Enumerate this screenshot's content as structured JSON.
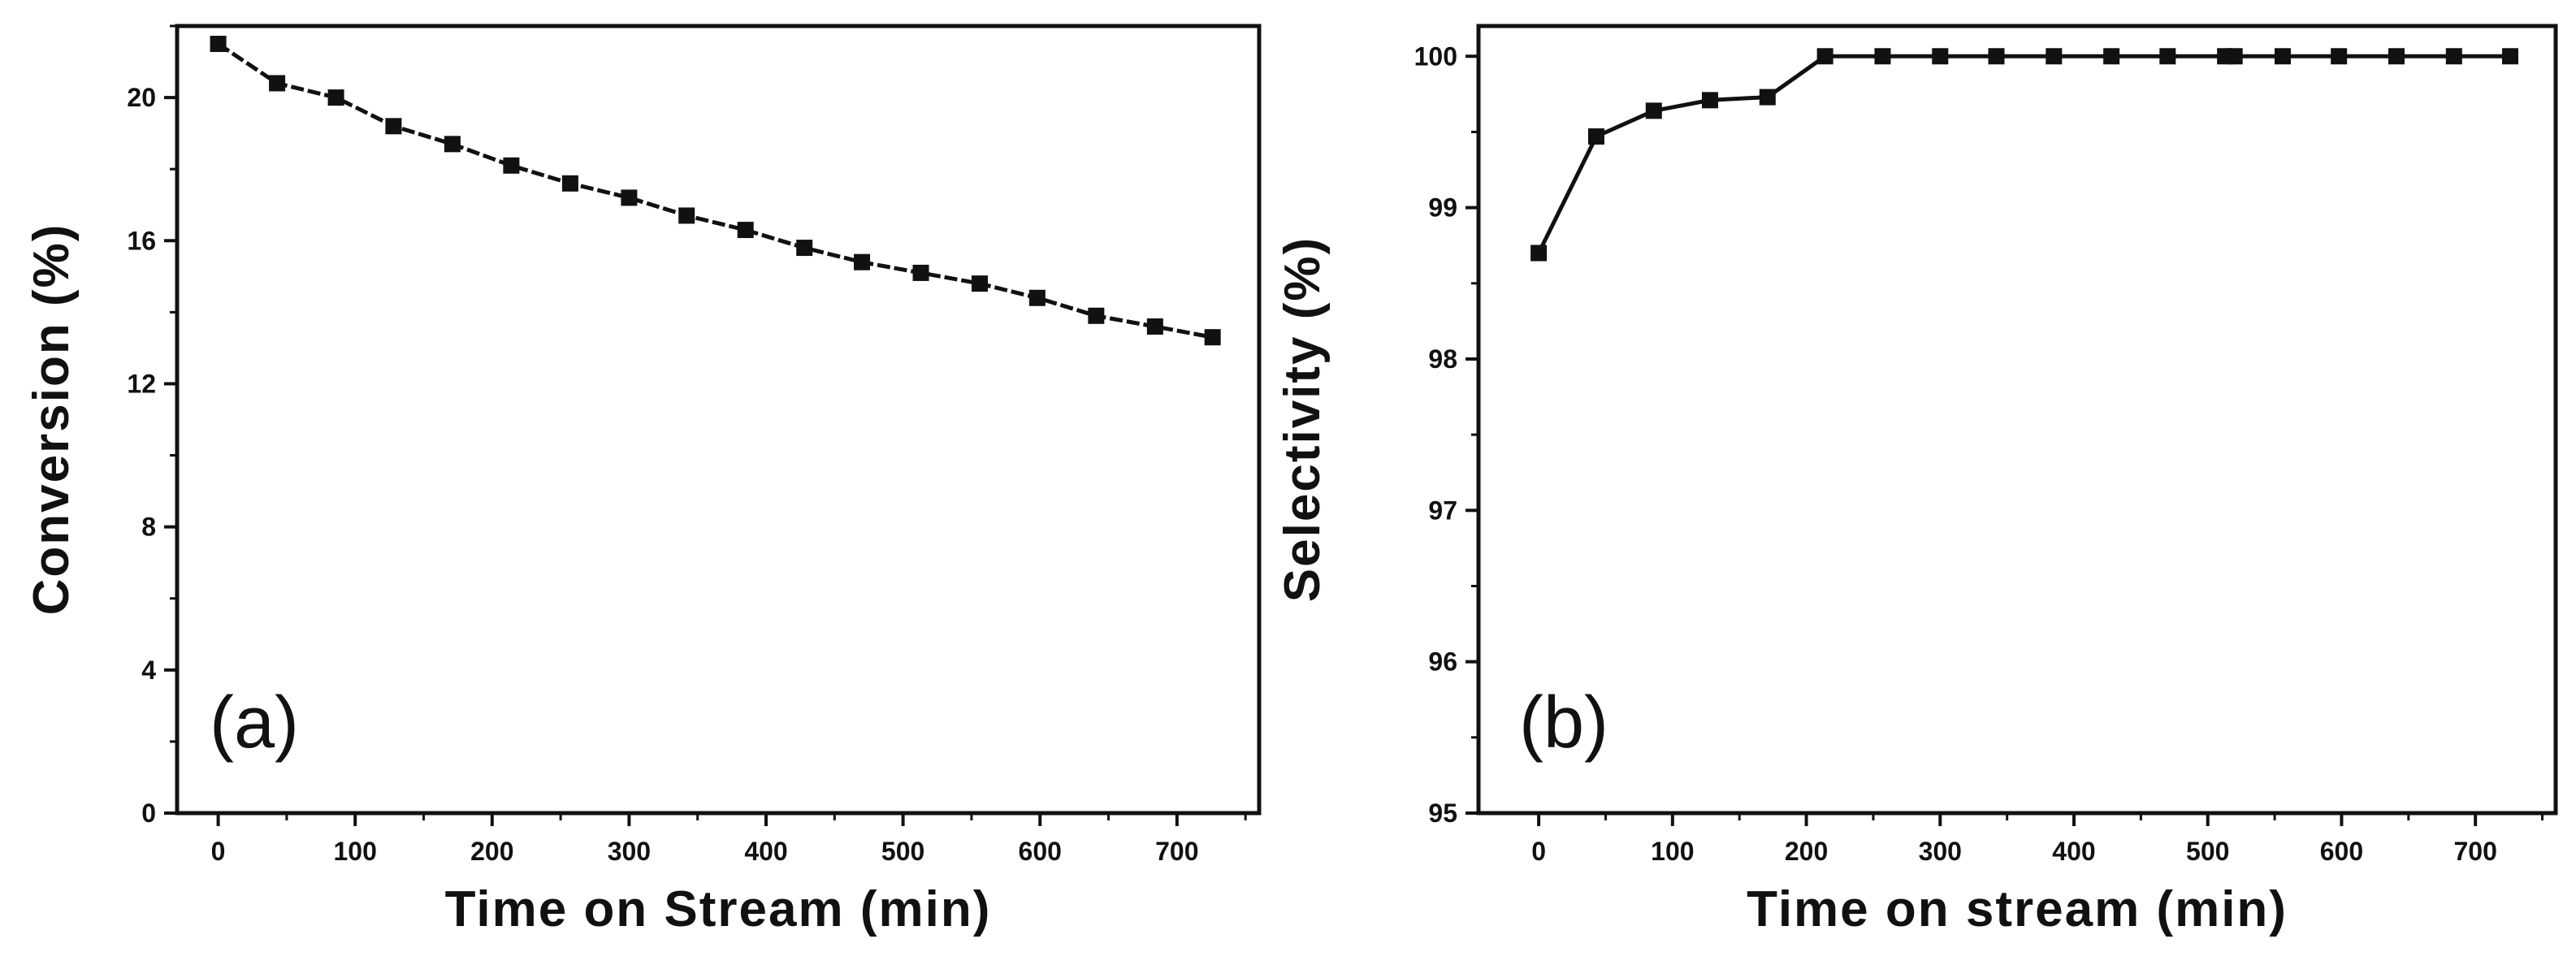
{
  "colors": {
    "ink": "#111111",
    "background": "#ffffff"
  },
  "chart_data": [
    {
      "type": "line",
      "panel_label": "(a)",
      "title": "",
      "xlabel": "Time on Stream (min)",
      "ylabel": "Conversion (%)",
      "xlim": [
        -30,
        760
      ],
      "ylim": [
        0,
        22
      ],
      "xticks": [
        0,
        100,
        200,
        300,
        400,
        500,
        600,
        700
      ],
      "yticks": [
        0,
        4,
        8,
        12,
        16,
        20
      ],
      "line_style": "dashed",
      "grid": false,
      "series": [
        {
          "name": "Conversion",
          "x": [
            0,
            43,
            86,
            128,
            171,
            214,
            257,
            300,
            342,
            385,
            428,
            470,
            513,
            556,
            598,
            641,
            684,
            726
          ],
          "values": [
            21.5,
            20.4,
            20.0,
            19.2,
            18.7,
            18.1,
            17.6,
            17.2,
            16.7,
            16.3,
            15.8,
            15.4,
            15.1,
            14.8,
            14.4,
            13.9,
            13.6,
            13.3
          ]
        }
      ]
    },
    {
      "type": "line",
      "panel_label": "(b)",
      "title": "",
      "xlabel": "Time on stream (min)",
      "ylabel": "Selectivity (%)",
      "xlim": [
        -45,
        760
      ],
      "ylim": [
        95,
        100.2
      ],
      "xticks": [
        0,
        100,
        200,
        300,
        400,
        500,
        600,
        700
      ],
      "yticks": [
        95,
        96,
        97,
        98,
        99,
        100
      ],
      "line_style": "solid",
      "grid": false,
      "series": [
        {
          "name": "Selectivity",
          "x": [
            0,
            43,
            86,
            128,
            171,
            214,
            257,
            300,
            342,
            385,
            428,
            470,
            513,
            520,
            556,
            598,
            641,
            684,
            726
          ],
          "values": [
            98.7,
            99.47,
            99.64,
            99.71,
            99.73,
            100,
            100,
            100,
            100,
            100,
            100,
            100,
            100,
            100,
            100,
            100,
            100,
            100,
            100
          ]
        }
      ]
    }
  ]
}
